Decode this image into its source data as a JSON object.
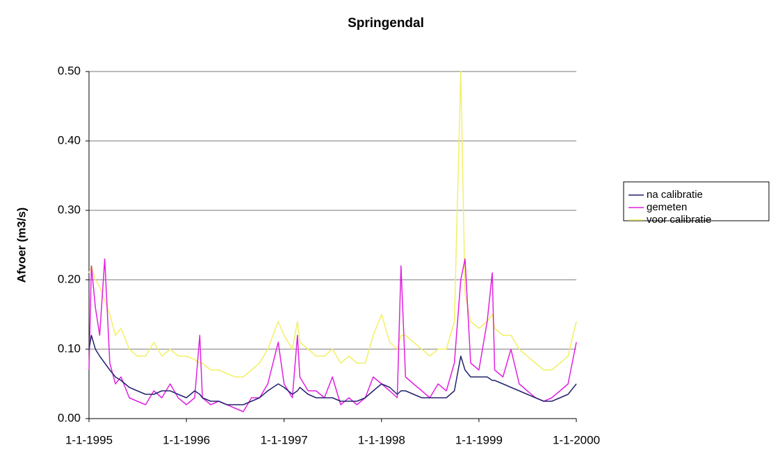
{
  "chart_data": {
    "type": "line",
    "title": "Springendal",
    "y_label": "Afvoer (m3/s)",
    "x": [
      "1-1-1995",
      "10-1-1995",
      "25-1-1995",
      "10-2-1995",
      "1-3-1995",
      "20-3-1995",
      "10-4-1995",
      "1-5-1995",
      "1-6-1995",
      "1-7-1995",
      "1-8-1995",
      "1-9-1995",
      "1-10-1995",
      "1-11-1995",
      "1-12-1995",
      "1-1-1996",
      "1-2-1996",
      "20-2-1996",
      "1-3-1996",
      "1-4-1996",
      "1-5-1996",
      "1-6-1996",
      "1-7-1996",
      "1-8-1996",
      "1-9-1996",
      "1-10-1996",
      "1-11-1996",
      "10-12-1996",
      "1-1-1997",
      "1-2-1997",
      "20-2-1997",
      "1-3-1997",
      "1-4-1997",
      "1-5-1997",
      "1-6-1997",
      "1-7-1997",
      "1-8-1997",
      "1-9-1997",
      "1-10-1997",
      "1-11-1997",
      "1-12-1997",
      "1-1-1998",
      "1-2-1998",
      "1-3-1998",
      "15-3-1998",
      "1-4-1998",
      "1-5-1998",
      "1-6-1998",
      "1-7-1998",
      "1-8-1998",
      "1-9-1998",
      "1-10-1998",
      "25-10-1998",
      "10-11-1998",
      "1-12-1998",
      "1-1-1999",
      "1-2-1999",
      "20-2-1999",
      "1-3-1999",
      "1-4-1999",
      "1-5-1999",
      "1-6-1999",
      "1-7-1999",
      "1-8-1999",
      "1-9-1999",
      "1-10-1999",
      "1-11-1999",
      "1-12-1999",
      "1-1-2000"
    ],
    "series": [
      {
        "name": "na calibratie",
        "color": "#22226e",
        "values": [
          0.1,
          0.12,
          0.1,
          0.09,
          0.08,
          0.07,
          0.06,
          0.055,
          0.045,
          0.04,
          0.035,
          0.035,
          0.04,
          0.04,
          0.035,
          0.03,
          0.04,
          0.035,
          0.03,
          0.025,
          0.025,
          0.02,
          0.02,
          0.02,
          0.025,
          0.03,
          0.04,
          0.05,
          0.045,
          0.035,
          0.04,
          0.045,
          0.035,
          0.03,
          0.03,
          0.03,
          0.025,
          0.025,
          0.025,
          0.03,
          0.04,
          0.05,
          0.045,
          0.035,
          0.04,
          0.04,
          0.035,
          0.03,
          0.03,
          0.03,
          0.03,
          0.04,
          0.09,
          0.07,
          0.06,
          0.06,
          0.06,
          0.055,
          0.055,
          0.05,
          0.045,
          0.04,
          0.035,
          0.03,
          0.025,
          0.025,
          0.03,
          0.035,
          0.05
        ]
      },
      {
        "name": "gemeten",
        "color": "#e020e0",
        "values": [
          0.07,
          0.22,
          0.16,
          0.12,
          0.23,
          0.08,
          0.05,
          0.06,
          0.03,
          0.025,
          0.02,
          0.04,
          0.03,
          0.05,
          0.03,
          0.02,
          0.03,
          0.12,
          0.03,
          0.02,
          0.025,
          0.02,
          0.015,
          0.01,
          0.03,
          0.03,
          0.05,
          0.11,
          0.05,
          0.03,
          0.12,
          0.06,
          0.04,
          0.04,
          0.03,
          0.06,
          0.02,
          0.03,
          0.02,
          0.03,
          0.06,
          0.05,
          0.04,
          0.03,
          0.22,
          0.06,
          0.05,
          0.04,
          0.03,
          0.05,
          0.04,
          0.08,
          0.2,
          0.23,
          0.08,
          0.07,
          0.14,
          0.21,
          0.07,
          0.06,
          0.1,
          0.05,
          0.04,
          0.03,
          0.025,
          0.03,
          0.04,
          0.05,
          0.11
        ]
      },
      {
        "name": "voor calibratie",
        "color": "#f2f064",
        "values": [
          0.21,
          0.22,
          0.2,
          0.19,
          0.17,
          0.15,
          0.12,
          0.13,
          0.1,
          0.09,
          0.09,
          0.11,
          0.09,
          0.1,
          0.09,
          0.09,
          0.085,
          0.08,
          0.08,
          0.07,
          0.07,
          0.065,
          0.06,
          0.06,
          0.07,
          0.08,
          0.1,
          0.14,
          0.12,
          0.1,
          0.14,
          0.11,
          0.1,
          0.09,
          0.09,
          0.1,
          0.08,
          0.09,
          0.08,
          0.08,
          0.12,
          0.15,
          0.11,
          0.1,
          0.12,
          0.12,
          0.11,
          0.1,
          0.09,
          0.1,
          0.1,
          0.14,
          0.5,
          0.18,
          0.14,
          0.13,
          0.14,
          0.15,
          0.13,
          0.12,
          0.12,
          0.1,
          0.09,
          0.08,
          0.07,
          0.07,
          0.08,
          0.09,
          0.14
        ]
      }
    ],
    "xlim": [
      "1-1-1995",
      "1-1-2000"
    ],
    "xticks": [
      "1-1-1995",
      "1-1-1996",
      "1-1-1997",
      "1-1-1998",
      "1-1-1999",
      "1-1-2000"
    ],
    "ylim": [
      0,
      0.5
    ],
    "yticks": [
      {
        "value": 0,
        "label": "0.00"
      },
      {
        "value": 0.1,
        "label": "0.10"
      },
      {
        "value": 0.2,
        "label": "0.20"
      },
      {
        "value": 0.3,
        "label": "0.30"
      },
      {
        "value": 0.4,
        "label": "0.40"
      },
      {
        "value": 0.5,
        "label": "0.50"
      }
    ],
    "grid": true,
    "legend": "right"
  }
}
